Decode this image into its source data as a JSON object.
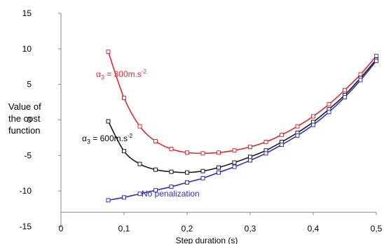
{
  "chart_data": {
    "type": "line",
    "xlabel": "Step duration (s)",
    "ylabel": [
      "Value of",
      "the cost",
      "function"
    ],
    "xlim": [
      0,
      0.5
    ],
    "ylim": [
      -15,
      15
    ],
    "x_ticks": [
      "0",
      "0,1",
      "0,2",
      "0,3",
      "0,4",
      "0,5"
    ],
    "y_ticks": [
      "15",
      "10",
      "5",
      "0",
      "-5",
      "-10",
      "-15"
    ],
    "grid": false,
    "marker": "square",
    "annotations": [
      {
        "prefix": "α",
        "sub": "3",
        "text": " = 300m.s",
        "sup": "-2",
        "color": "#e8262b"
      },
      {
        "prefix": "α",
        "sub": "3",
        "text": " = 600m.s",
        "sup": "-2",
        "color": "#000000"
      },
      {
        "prefix": "",
        "sub": "",
        "text": "No penalization",
        "sup": "",
        "color": "#2b2bd6"
      }
    ],
    "series": [
      {
        "color": "#e8262b",
        "x": [
          0.075,
          0.1,
          0.125,
          0.15,
          0.175,
          0.2,
          0.225,
          0.25,
          0.275,
          0.3,
          0.325,
          0.35,
          0.375,
          0.4,
          0.425,
          0.45,
          0.475,
          0.5
        ],
        "y": [
          9.6,
          3.1,
          -0.9,
          -3.0,
          -4.1,
          -4.6,
          -4.7,
          -4.6,
          -4.3,
          -3.8,
          -3.1,
          -2.1,
          -0.9,
          0.5,
          2.2,
          4.2,
          6.4,
          9.0
        ]
      },
      {
        "color": "#1a1a1a",
        "x": [
          0.075,
          0.1,
          0.125,
          0.15,
          0.175,
          0.2,
          0.225,
          0.25,
          0.275,
          0.3,
          0.325,
          0.35,
          0.375,
          0.4,
          0.425,
          0.45,
          0.475,
          0.5
        ],
        "y": [
          -0.2,
          -4.4,
          -6.2,
          -7.0,
          -7.3,
          -7.4,
          -7.2,
          -6.7,
          -6.0,
          -5.2,
          -4.3,
          -3.1,
          -1.8,
          -0.3,
          1.5,
          3.5,
          5.9,
          8.5
        ]
      },
      {
        "color": "#2b2bd6",
        "x": [
          0.075,
          0.1,
          0.125,
          0.15,
          0.175,
          0.2,
          0.225,
          0.25,
          0.275,
          0.3,
          0.325,
          0.35,
          0.375,
          0.4,
          0.425,
          0.45,
          0.475,
          0.5
        ],
        "y": [
          -11.3,
          -10.9,
          -10.4,
          -9.9,
          -9.4,
          -8.8,
          -8.2,
          -7.4,
          -6.6,
          -5.7,
          -4.7,
          -3.5,
          -2.2,
          -0.7,
          1.1,
          3.2,
          5.6,
          8.3
        ]
      }
    ]
  }
}
